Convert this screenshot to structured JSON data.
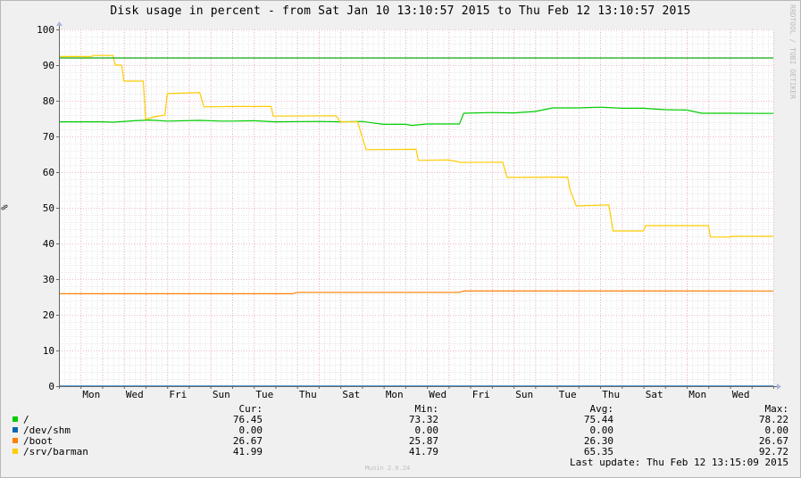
{
  "chart_data": {
    "type": "line",
    "title": "Disk usage in percent - from Sat Jan 10 13:10:57 2015 to Thu Feb 12 13:10:57 2015",
    "ylabel": "%",
    "ylim": [
      0,
      100
    ],
    "yticks": [
      0,
      10,
      20,
      30,
      40,
      50,
      60,
      70,
      80,
      90,
      100
    ],
    "xlim_days": [
      0,
      33
    ],
    "xtick_labels": [
      {
        "day": 1.5,
        "label": "Mon"
      },
      {
        "day": 3.5,
        "label": "Wed"
      },
      {
        "day": 5.5,
        "label": "Fri"
      },
      {
        "day": 7.5,
        "label": "Sun"
      },
      {
        "day": 9.5,
        "label": "Tue"
      },
      {
        "day": 11.5,
        "label": "Thu"
      },
      {
        "day": 13.5,
        "label": "Sat"
      },
      {
        "day": 15.5,
        "label": "Mon"
      },
      {
        "day": 17.5,
        "label": "Wed"
      },
      {
        "day": 19.5,
        "label": "Fri"
      },
      {
        "day": 21.5,
        "label": "Sun"
      },
      {
        "day": 23.5,
        "label": "Tue"
      },
      {
        "day": 25.5,
        "label": "Thu"
      },
      {
        "day": 27.5,
        "label": "Sat"
      },
      {
        "day": 29.5,
        "label": "Mon"
      },
      {
        "day": 31.5,
        "label": "Wed"
      }
    ],
    "grid": true,
    "series": [
      {
        "name": "/",
        "color": "#00cc00",
        "points": [
          [
            0,
            74.1
          ],
          [
            2.0,
            74.1
          ],
          [
            2.5,
            74.0
          ],
          [
            3.5,
            74.4
          ],
          [
            4.2,
            74.6
          ],
          [
            5.0,
            74.3
          ],
          [
            6.5,
            74.5
          ],
          [
            7.5,
            74.3
          ],
          [
            8.0,
            74.3
          ],
          [
            9.0,
            74.4
          ],
          [
            10.0,
            74.1
          ],
          [
            12.0,
            74.2
          ],
          [
            13.0,
            74.1
          ],
          [
            14.0,
            74.2
          ],
          [
            14.5,
            73.8
          ],
          [
            15.0,
            73.4
          ],
          [
            16.0,
            73.4
          ],
          [
            16.3,
            73.1
          ],
          [
            17.0,
            73.5
          ],
          [
            18.5,
            73.5
          ],
          [
            18.7,
            76.5
          ],
          [
            20.0,
            76.7
          ],
          [
            21.0,
            76.6
          ],
          [
            22.0,
            77.0
          ],
          [
            22.8,
            78.0
          ],
          [
            24.0,
            78.0
          ],
          [
            25.0,
            78.2
          ],
          [
            26.0,
            77.9
          ],
          [
            27.0,
            77.9
          ],
          [
            28.0,
            77.5
          ],
          [
            29.0,
            77.4
          ],
          [
            29.7,
            76.5
          ],
          [
            31.0,
            76.5
          ],
          [
            33.0,
            76.45
          ]
        ],
        "stats": {
          "cur": "76.45",
          "min": "73.32",
          "avg": "75.44",
          "max": "78.22"
        }
      },
      {
        "name": "/dev/shm",
        "color": "#0066b3",
        "points": [
          [
            0,
            0.0
          ],
          [
            33.0,
            0.0
          ]
        ],
        "stats": {
          "cur": "0.00",
          "min": "0.00",
          "avg": "0.00",
          "max": "0.00"
        }
      },
      {
        "name": "/boot",
        "color": "#ff8000",
        "points": [
          [
            0,
            25.9
          ],
          [
            10.8,
            25.9
          ],
          [
            11.0,
            26.3
          ],
          [
            18.5,
            26.3
          ],
          [
            18.7,
            26.7
          ],
          [
            33.0,
            26.67
          ]
        ],
        "stats": {
          "cur": "26.67",
          "min": "25.87",
          "avg": "26.30",
          "max": "26.67"
        }
      },
      {
        "name": "/srv/barman",
        "color": "#ffcc00",
        "points": [
          [
            0,
            92.4
          ],
          [
            1.5,
            92.4
          ],
          [
            1.6,
            92.7
          ],
          [
            2.5,
            92.7
          ],
          [
            2.6,
            90.0
          ],
          [
            2.9,
            90.0
          ],
          [
            3.0,
            85.5
          ],
          [
            3.9,
            85.5
          ],
          [
            4.0,
            74.8
          ],
          [
            4.4,
            75.5
          ],
          [
            4.9,
            76.0
          ],
          [
            5.0,
            82.0
          ],
          [
            6.5,
            82.3
          ],
          [
            6.7,
            78.3
          ],
          [
            8.0,
            78.4
          ],
          [
            9.8,
            78.4
          ],
          [
            9.9,
            75.7
          ],
          [
            12.8,
            75.8
          ],
          [
            13.0,
            74.1
          ],
          [
            13.8,
            74.1
          ],
          [
            14.0,
            70.0
          ],
          [
            14.2,
            66.3
          ],
          [
            16.5,
            66.4
          ],
          [
            16.6,
            63.3
          ],
          [
            18.0,
            63.4
          ],
          [
            18.6,
            62.7
          ],
          [
            20.5,
            62.8
          ],
          [
            20.7,
            58.5
          ],
          [
            23.5,
            58.6
          ],
          [
            23.6,
            55.2
          ],
          [
            23.9,
            50.5
          ],
          [
            25.4,
            50.8
          ],
          [
            25.6,
            43.5
          ],
          [
            27.0,
            43.5
          ],
          [
            27.1,
            45.0
          ],
          [
            30.0,
            45.0
          ],
          [
            30.1,
            41.8
          ],
          [
            31.0,
            41.8
          ],
          [
            31.1,
            42.0
          ],
          [
            33.0,
            41.99
          ]
        ],
        "stats": {
          "cur": "41.99",
          "min": "41.79",
          "avg": "65.35",
          "max": "92.72"
        }
      },
      {
        "name": "__redline",
        "color": "#11aa11",
        "points": [
          [
            0,
            92.0
          ],
          [
            33.0,
            92.0
          ]
        ]
      }
    ]
  },
  "legend_headers": {
    "cur": "Cur:",
    "min": "Min:",
    "avg": "Avg:",
    "max": "Max:"
  },
  "watermark": "RRDTOOL / TOBI OETIKER",
  "footer_version": "Munin 2.0.24",
  "last_update": "Last update: Thu Feb 12 13:15:09 2015"
}
